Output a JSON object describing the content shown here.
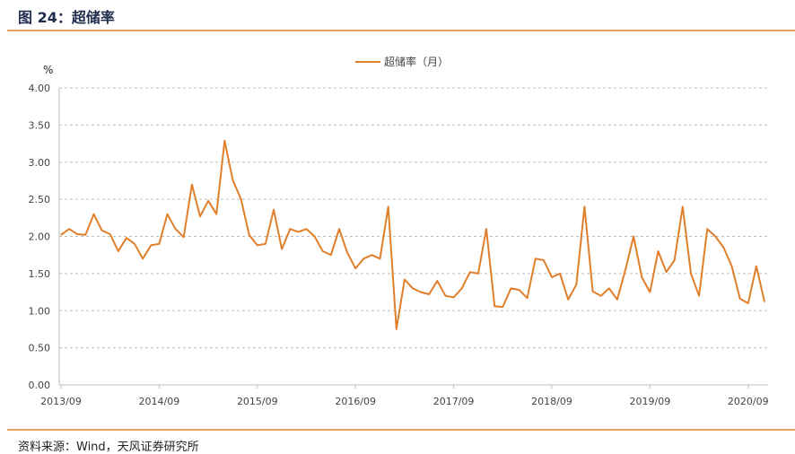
{
  "header": {
    "title": "图 24：超储率"
  },
  "footer": {
    "source": "资料来源：Wind，天风证券研究所"
  },
  "colors": {
    "line": "#e07f2b",
    "grid": "#bdbdbd",
    "rule": "#e3a15e"
  },
  "chart_data": {
    "type": "line",
    "y_unit": "%",
    "ylim": [
      0,
      4
    ],
    "y_ticks": [
      "0.00",
      "0.50",
      "1.00",
      "1.50",
      "2.00",
      "2.50",
      "3.00",
      "3.50",
      "4.00"
    ],
    "x_ticks": [
      "2013/09",
      "2014/09",
      "2015/09",
      "2016/09",
      "2017/09",
      "2018/09",
      "2019/09",
      "2020/09"
    ],
    "grid": "horizontal dashed",
    "legend_position": "top",
    "series": [
      {
        "name": "超储率（月）",
        "start": "2013/09",
        "frequency": "monthly",
        "values": [
          2.02,
          2.1,
          2.03,
          2.02,
          2.3,
          2.08,
          2.03,
          1.8,
          1.98,
          1.9,
          1.7,
          1.88,
          1.9,
          2.3,
          2.1,
          1.99,
          2.7,
          2.27,
          2.48,
          2.3,
          3.29,
          2.76,
          2.5,
          2.02,
          1.88,
          1.9,
          2.36,
          1.83,
          2.1,
          2.06,
          2.1,
          2.0,
          1.8,
          1.75,
          2.1,
          1.78,
          1.57,
          1.7,
          1.75,
          1.7,
          2.4,
          0.75,
          1.42,
          1.3,
          1.25,
          1.22,
          1.4,
          1.2,
          1.18,
          1.3,
          1.52,
          1.5,
          2.1,
          1.06,
          1.05,
          1.3,
          1.28,
          1.17,
          1.7,
          1.68,
          1.45,
          1.5,
          1.15,
          1.35,
          2.4,
          1.26,
          1.2,
          1.3,
          1.15,
          1.55,
          2.0,
          1.45,
          1.25,
          1.8,
          1.52,
          1.68,
          2.4,
          1.5,
          1.2,
          2.1,
          2.0,
          1.85,
          1.6,
          1.16,
          1.1,
          1.6,
          1.12
        ]
      }
    ]
  }
}
